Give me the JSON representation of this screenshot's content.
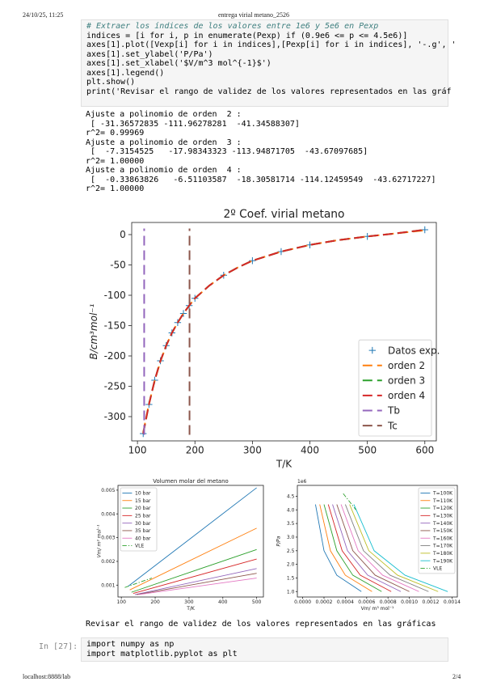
{
  "header": {
    "datetime": "24/10/25, 11:25",
    "title": "entrega virial metano_2526"
  },
  "code_cell": {
    "lines": [
      "# Extraer los índices de los valores entre 1e6 y 5e6 en Pexp",
      "indices = [i for i, p in enumerate(Pexp) if (0.9e6 <= p <= 4.5e6)]",
      "axes[1].plot([Vexp[i] for i in indices],[Pexp[i] for i in indices], '-.g', '",
      "axes[1].set_ylabel('P/Pa')",
      "axes[1].set_xlabel('$V/m^3 mol^{-1}$')",
      "axes[1].legend()",
      "plt.show()",
      "print('Revisar el rango de validez de los valores representados en las gráf"
    ]
  },
  "output": {
    "lines": [
      "Ajuste a polinomio de orden  2 :",
      " [ -31.36572835 -111.96278281  -41.34588307]",
      "r^2= 0.99969",
      "Ajuste a polinomio de orden  3 :",
      " [  -7.3154525   -17.98343323 -113.94871705  -43.67097685]",
      "r^2= 1.00000",
      "Ajuste a polinomio de orden  4 :",
      " [  -0.33863826   -6.51103587  -18.30581714 -114.12459549  -43.62717227]",
      "r^2= 1.00000"
    ]
  },
  "chart_data": [
    {
      "type": "line",
      "title": "2º Coef. virial metano",
      "x_label": "T/K",
      "y_label": "B/cm³mol⁻¹",
      "xlim": [
        90,
        620
      ],
      "ylim": [
        -340,
        20
      ],
      "xticks": [
        100,
        200,
        300,
        400,
        500,
        600
      ],
      "yticks": [
        -300,
        -250,
        -200,
        -150,
        -100,
        -50,
        0
      ],
      "legend": "lower right",
      "series": [
        {
          "name": "Datos exp.",
          "color": "#1f77b4",
          "marker": "+",
          "linestyle": "none",
          "x": [
            110,
            120,
            130,
            140,
            150,
            160,
            170,
            180,
            190,
            200,
            250,
            300,
            350,
            400,
            500,
            600
          ],
          "values": [
            -328,
            -280,
            -240,
            -208,
            -183,
            -162,
            -145,
            -130,
            -117,
            -105,
            -67,
            -43,
            -28,
            -17,
            -3,
            8
          ]
        },
        {
          "name": "orden 2",
          "color": "#ff7f0e",
          "linestyle": "dashed",
          "x": [
            110,
            120,
            130,
            140,
            150,
            160,
            170,
            180,
            190,
            200,
            225,
            250,
            275,
            300,
            350,
            400,
            450,
            500,
            550,
            600
          ],
          "values": [
            -326,
            -279,
            -241,
            -209,
            -183,
            -162,
            -145,
            -130,
            -117,
            -105,
            -84,
            -67,
            -54,
            -43,
            -28,
            -17,
            -9,
            -3,
            2,
            7
          ]
        },
        {
          "name": "orden 3",
          "color": "#2ca02c",
          "linestyle": "dashed",
          "x": [
            110,
            120,
            130,
            140,
            150,
            160,
            170,
            180,
            190,
            200,
            225,
            250,
            275,
            300,
            350,
            400,
            450,
            500,
            550,
            600
          ],
          "values": [
            -328,
            -280,
            -240,
            -208,
            -183,
            -162,
            -145,
            -130,
            -117,
            -105,
            -84,
            -67,
            -54,
            -43,
            -28,
            -17,
            -9,
            -3,
            2,
            8
          ]
        },
        {
          "name": "orden 4",
          "color": "#d62728",
          "linestyle": "dashed",
          "x": [
            110,
            120,
            130,
            140,
            150,
            160,
            170,
            180,
            190,
            200,
            225,
            250,
            275,
            300,
            350,
            400,
            450,
            500,
            550,
            600
          ],
          "values": [
            -328,
            -280,
            -240,
            -208,
            -183,
            -162,
            -145,
            -130,
            -117,
            -105,
            -84,
            -67,
            -54,
            -43,
            -28,
            -17,
            -9,
            -3,
            2,
            8
          ]
        },
        {
          "name": "Tb",
          "color": "#9467bd",
          "linestyle": "dashed",
          "x": [
            111.7,
            111.7
          ],
          "values": [
            -330,
            10
          ]
        },
        {
          "name": "Tc",
          "color": "#8c564b",
          "linestyle": "dashed",
          "x": [
            190.6,
            190.6
          ],
          "values": [
            -330,
            10
          ]
        }
      ]
    },
    {
      "type": "line",
      "title": "Volumen molar del metano",
      "x_label": "T/K",
      "y_label": "Vm/ m³ mol⁻¹",
      "xlim": [
        90,
        520
      ],
      "ylim": [
        0.0005,
        0.0052
      ],
      "xticks": [
        100,
        200,
        300,
        400,
        500
      ],
      "yticks": [
        0.001,
        0.002,
        0.003,
        0.004,
        0.005
      ],
      "legend": "upper left",
      "series": [
        {
          "name": "10 bar",
          "color": "#1f77b4",
          "linestyle": "solid",
          "x": [
            120,
            500
          ],
          "values": [
            0.00095,
            0.0051
          ]
        },
        {
          "name": "15 bar",
          "color": "#ff7f0e",
          "linestyle": "solid",
          "x": [
            125,
            500
          ],
          "values": [
            0.0008,
            0.0034
          ]
        },
        {
          "name": "20 bar",
          "color": "#2ca02c",
          "linestyle": "solid",
          "x": [
            130,
            500
          ],
          "values": [
            0.0007,
            0.0025
          ]
        },
        {
          "name": "25 bar",
          "color": "#d62728",
          "linestyle": "solid",
          "x": [
            135,
            500
          ],
          "values": [
            0.00065,
            0.0021
          ]
        },
        {
          "name": "30 bar",
          "color": "#9467bd",
          "linestyle": "solid",
          "x": [
            140,
            500
          ],
          "values": [
            0.0006,
            0.0017
          ]
        },
        {
          "name": "35 bar",
          "color": "#8c564b",
          "linestyle": "solid",
          "x": [
            145,
            500
          ],
          "values": [
            0.0006,
            0.0015
          ]
        },
        {
          "name": "40 bar",
          "color": "#e377c2",
          "linestyle": "solid",
          "x": [
            150,
            500
          ],
          "values": [
            0.0006,
            0.0013
          ]
        },
        {
          "name": "VLE",
          "color": "#2ca02c",
          "linestyle": "dashdot",
          "x": [
            110,
            190
          ],
          "values": [
            0.0009,
            0.0013
          ]
        }
      ]
    },
    {
      "type": "line",
      "title": "",
      "x_label": "Vm/ m³ mol⁻¹",
      "y_label": "P/Pa",
      "y_offset_label": "1e6",
      "xlim": [
        -5e-05,
        0.00145
      ],
      "ylim": [
        0.8,
        4.9
      ],
      "xticks": [
        {
          "value": 0,
          "label": "0.0000"
        },
        {
          "value": 0.0002,
          "label": "0.0002"
        },
        {
          "value": 0.0004,
          "label": "0.0004"
        },
        {
          "value": 0.0006,
          "label": "0.0006"
        },
        {
          "value": 0.0008,
          "label": "0.0008"
        },
        {
          "value": 0.001,
          "label": "0.0010"
        },
        {
          "value": 0.0012,
          "label": "0.0012"
        },
        {
          "value": 0.0014,
          "label": "0.0014"
        }
      ],
      "yticks": [
        {
          "value": 1,
          "label": "1.0"
        },
        1.5,
        {
          "value": 2,
          "label": "2.0"
        },
        2.5,
        {
          "value": 3,
          "label": "3.0"
        },
        3.5,
        {
          "value": 4,
          "label": "4.0"
        },
        4.5
      ],
      "legend": "upper right",
      "series": [
        {
          "name": "T=100K",
          "color": "#1f77b4",
          "linestyle": "solid",
          "x": [
            0.00012,
            0.0002,
            0.00032,
            0.00055
          ],
          "values": [
            4.2,
            2.5,
            1.6,
            1.0
          ]
        },
        {
          "name": "T=110K",
          "color": "#ff7f0e",
          "linestyle": "solid",
          "x": [
            0.00016,
            0.00026,
            0.0004,
            0.00065
          ],
          "values": [
            4.2,
            2.5,
            1.6,
            1.0
          ]
        },
        {
          "name": "T=120K",
          "color": "#2ca02c",
          "linestyle": "solid",
          "x": [
            0.0002,
            0.00032,
            0.00047,
            0.00074
          ],
          "values": [
            4.2,
            2.5,
            1.6,
            1.0
          ]
        },
        {
          "name": "T=130K",
          "color": "#d62728",
          "linestyle": "solid",
          "x": [
            0.00024,
            0.00037,
            0.00054,
            0.00083
          ],
          "values": [
            4.2,
            2.5,
            1.6,
            1.0
          ]
        },
        {
          "name": "T=140K",
          "color": "#9467bd",
          "linestyle": "solid",
          "x": [
            0.00028,
            0.00042,
            0.00061,
            0.00092
          ],
          "values": [
            4.2,
            2.5,
            1.6,
            1.0
          ]
        },
        {
          "name": "T=150K",
          "color": "#8c564b",
          "linestyle": "solid",
          "x": [
            0.00032,
            0.00047,
            0.00068,
            0.001
          ],
          "values": [
            4.2,
            2.5,
            1.6,
            1.0
          ]
        },
        {
          "name": "T=160K",
          "color": "#e377c2",
          "linestyle": "solid",
          "x": [
            0.00036,
            0.00052,
            0.00075,
            0.00109
          ],
          "values": [
            4.2,
            2.5,
            1.6,
            1.0
          ]
        },
        {
          "name": "T=170K",
          "color": "#7f7f7f",
          "linestyle": "solid",
          "x": [
            0.0004,
            0.00057,
            0.00082,
            0.00118
          ],
          "values": [
            4.2,
            2.5,
            1.6,
            1.0
          ]
        },
        {
          "name": "T=180K",
          "color": "#bcbd22",
          "linestyle": "solid",
          "x": [
            0.00044,
            0.00062,
            0.00089,
            0.00127
          ],
          "values": [
            4.2,
            2.5,
            1.6,
            1.0
          ]
        },
        {
          "name": "T=190K",
          "color": "#17becf",
          "linestyle": "solid",
          "x": [
            0.00048,
            0.00067,
            0.00096,
            0.00136
          ],
          "values": [
            4.2,
            2.5,
            1.6,
            1.0
          ]
        },
        {
          "name": "VLE",
          "color": "#2ca02c",
          "linestyle": "dashdot",
          "x": [
            0.00038,
            0.0005
          ],
          "values": [
            4.6,
            4.0
          ]
        }
      ]
    }
  ],
  "markdown": {
    "text": "Revisar el rango de validez de los valores representados en las gráficas"
  },
  "next_cell": {
    "prompt": "In [27]:",
    "lines": [
      "import numpy as np",
      "import matplotlib.pyplot as plt"
    ]
  },
  "footer": {
    "url": "localhost:8888/lab",
    "page": "2/4"
  }
}
